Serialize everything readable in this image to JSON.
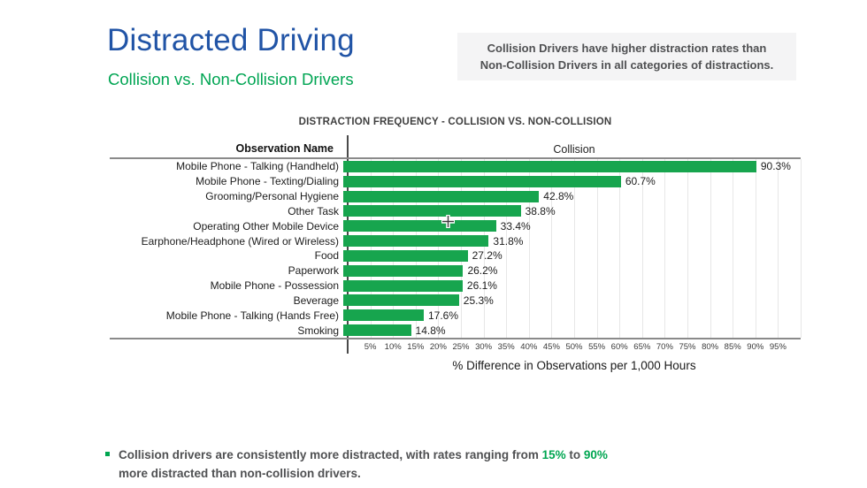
{
  "header": {
    "title": "Distracted Driving",
    "subtitle": "Collision vs. Non-Collision Drivers",
    "callout_line1": "Collision Drivers have higher distraction rates than",
    "callout_line2": "Non-Collision Drivers in all categories of distractions."
  },
  "chart_data": {
    "type": "bar",
    "orientation": "horizontal",
    "title": "DISTRACTION FREQUENCY - COLLISION VS. NON-COLLISION",
    "column_header_left": "Observation Name",
    "column_header_right": "Collision",
    "categories": [
      "Mobile Phone - Talking (Handheld)",
      "Mobile Phone - Texting/Dialing",
      "Grooming/Personal Hygiene",
      "Other Task",
      "Operating Other Mobile Device",
      "Earphone/Headphone (Wired or Wireless)",
      "Food",
      "Paperwork",
      "Mobile Phone - Possession",
      "Beverage",
      "Mobile Phone - Talking (Hands Free)",
      "Smoking"
    ],
    "values": [
      90.3,
      60.7,
      42.8,
      38.8,
      33.4,
      31.8,
      27.2,
      26.2,
      26.1,
      25.3,
      17.6,
      14.8
    ],
    "value_labels": [
      "90.3%",
      "60.7%",
      "42.8%",
      "38.8%",
      "33.4%",
      "31.8%",
      "27.2%",
      "26.2%",
      "26.1%",
      "25.3%",
      "17.6%",
      "14.8%"
    ],
    "xlabel": "% Difference in Observations per 1,000 Hours",
    "xlim": [
      0,
      100
    ],
    "x_ticks": [
      "5%",
      "10%",
      "15%",
      "20%",
      "25%",
      "30%",
      "35%",
      "40%",
      "45%",
      "50%",
      "55%",
      "60%",
      "65%",
      "70%",
      "75%",
      "80%",
      "85%",
      "90%",
      "95%"
    ],
    "grid": true,
    "legend": "none",
    "bar_color": "#17a54e"
  },
  "footer": {
    "line1_pre": "Collision drivers are consistently more distracted, with rates ranging from ",
    "highlight_low": "15%",
    "line1_mid": " to ",
    "highlight_high": "90%",
    "line2": "more distracted than non-collision drivers."
  },
  "colors": {
    "title_blue": "#2154a6",
    "accent_green": "#00a651",
    "bar_green": "#17a54e",
    "callout_bg": "#f4f4f5",
    "body_gray": "#4f5052"
  }
}
